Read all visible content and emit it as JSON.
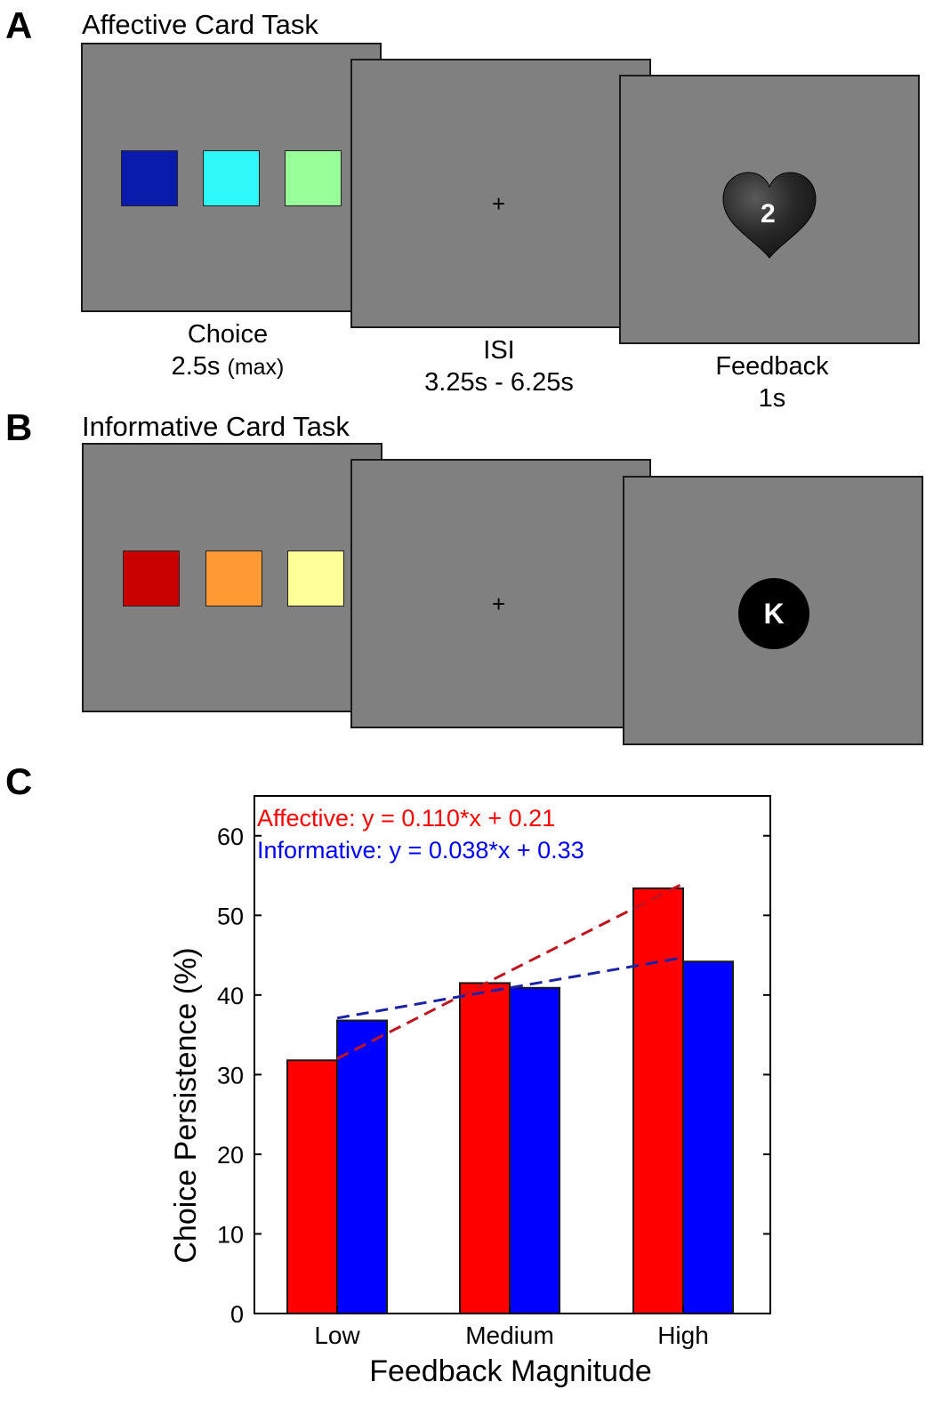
{
  "panel_a": {
    "letter": "A",
    "title": "Affective Card Task",
    "cards": [
      "#0a1aaa",
      "#2ff8fb",
      "#99ff99"
    ],
    "fixation": "+",
    "choice_label": "Choice",
    "choice_time": "2.5s",
    "choice_note": "(max)",
    "isi_label": "ISI",
    "isi_time": "3.25s - 6.25s",
    "feedback_label": "Feedback",
    "feedback_time": "1s",
    "feedback_value": "2"
  },
  "panel_b": {
    "letter": "B",
    "title": "Informative Card Task",
    "cards": [
      "#c80000",
      "#ff9933",
      "#ffff99"
    ],
    "fixation": "+",
    "feedback_value": "K"
  },
  "panel_c": {
    "letter": "C"
  },
  "chart_data": {
    "type": "bar",
    "title": "",
    "xlabel": "Feedback Magnitude",
    "ylabel": "Choice Persistence (%)",
    "categories": [
      "Low",
      "Medium",
      "High"
    ],
    "ylim": [
      0,
      65
    ],
    "yticks": [
      0,
      10,
      20,
      30,
      40,
      50,
      60
    ],
    "series": [
      {
        "name": "Affective",
        "color": "#ff0000",
        "values": [
          31.8,
          41.5,
          53.4
        ]
      },
      {
        "name": "Informative",
        "color": "#0000ff",
        "values": [
          36.8,
          40.9,
          44.2
        ]
      }
    ],
    "fits": [
      {
        "label": "Affective: y = 0.110*x + 0.21",
        "color": "#ff0000",
        "line_color": "#c0141e",
        "values": [
          32,
          43,
          54
        ]
      },
      {
        "label": "Informative: y = 0.038*x + 0.33",
        "color": "#0000ff",
        "line_color": "#1a22a8",
        "values": [
          37.1,
          40.9,
          44.7
        ]
      }
    ]
  }
}
